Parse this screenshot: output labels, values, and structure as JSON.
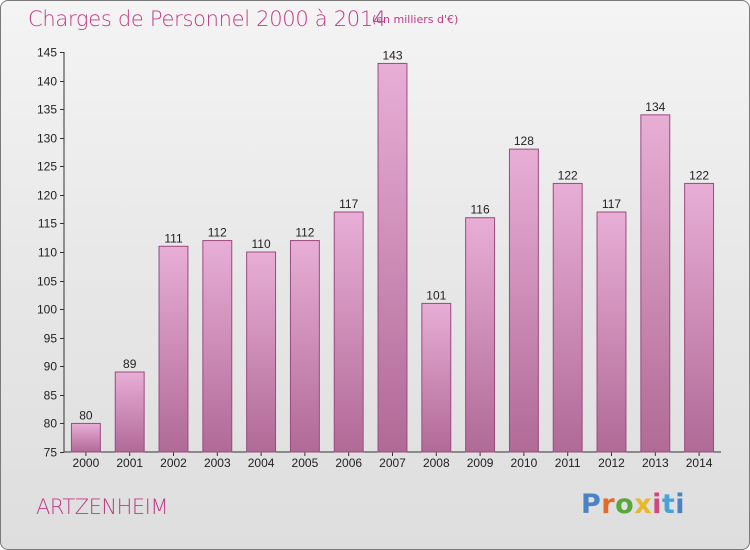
{
  "header": {
    "title": "Charges de Personnel 2000 à 2014",
    "subtitle": "(en milliers d'€)"
  },
  "footer": {
    "place": "ARTZENHEIM",
    "brand_letters": [
      "P",
      "r",
      "o",
      "x",
      "i",
      "t",
      "i"
    ]
  },
  "colors": {
    "title": "#c03a86",
    "bar_top": "#e8aed6",
    "bar_bottom": "#b06a96",
    "bar_border": "#9a4a7e"
  },
  "chart_data": {
    "type": "bar",
    "title": "Charges de Personnel 2000 à 2014",
    "subtitle": "(en milliers d'€)",
    "categories": [
      "2000",
      "2001",
      "2002",
      "2003",
      "2004",
      "2005",
      "2006",
      "2007",
      "2008",
      "2009",
      "2010",
      "2011",
      "2012",
      "2013",
      "2014"
    ],
    "values": [
      80,
      89,
      111,
      112,
      110,
      112,
      117,
      143,
      101,
      116,
      128,
      122,
      117,
      134,
      122
    ],
    "ylim": [
      75,
      145
    ],
    "yticks": [
      75,
      80,
      85,
      90,
      95,
      100,
      105,
      110,
      115,
      120,
      125,
      130,
      135,
      140,
      145
    ],
    "grid": false,
    "data_labels": true
  }
}
